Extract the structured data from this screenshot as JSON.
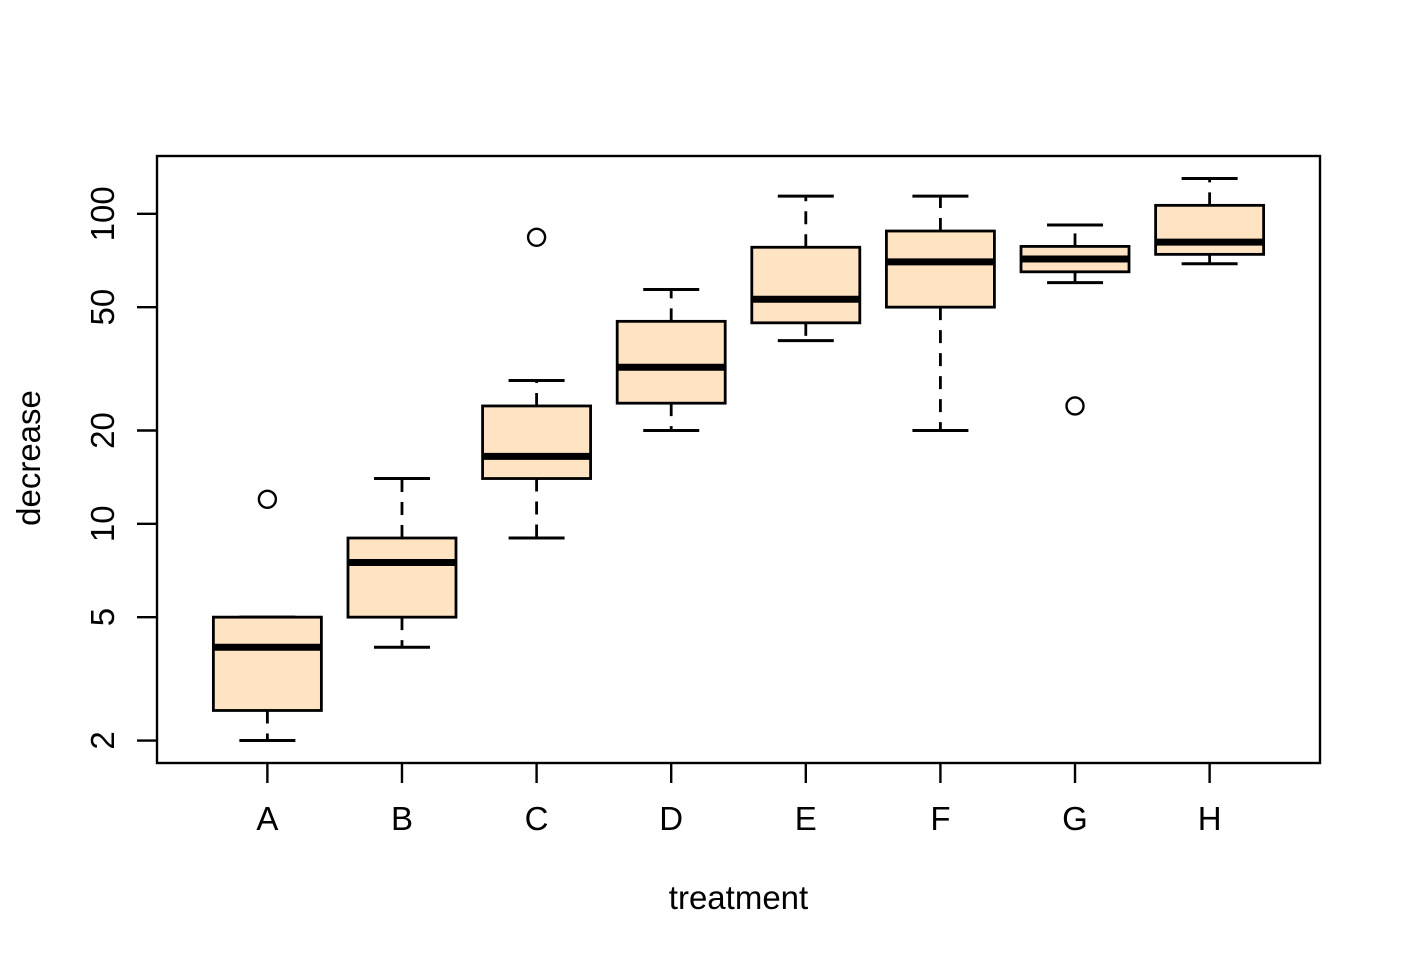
{
  "figure": {
    "background_color": "#ffffff",
    "box_fill_color": "#FFE4C4",
    "line_color": "#000000"
  },
  "chart_data": {
    "type": "boxplot",
    "title": "",
    "xlabel": "treatment",
    "ylabel": "decrease",
    "y_scale": "log10",
    "y_ticks": [
      2,
      5,
      10,
      20,
      50,
      100
    ],
    "ylim": [
      1.69,
      154
    ],
    "grid": false,
    "legend": null,
    "categories": [
      "A",
      "B",
      "C",
      "D",
      "E",
      "F",
      "G",
      "H"
    ],
    "boxes": [
      {
        "category": "A",
        "whisker_low": 2,
        "q1": 2.5,
        "median": 4,
        "q3": 5,
        "whisker_high": 5,
        "outliers": [
          12
        ]
      },
      {
        "category": "B",
        "whisker_low": 4,
        "q1": 5,
        "median": 7.5,
        "q3": 9,
        "whisker_high": 14,
        "outliers": []
      },
      {
        "category": "C",
        "whisker_low": 9,
        "q1": 14,
        "median": 16.5,
        "q3": 24,
        "whisker_high": 29,
        "outliers": [
          84
        ]
      },
      {
        "category": "D",
        "whisker_low": 20,
        "q1": 24.5,
        "median": 32,
        "q3": 45,
        "whisker_high": 57,
        "outliers": []
      },
      {
        "category": "E",
        "whisker_low": 39,
        "q1": 44.5,
        "median": 53,
        "q3": 78,
        "whisker_high": 114,
        "outliers": []
      },
      {
        "category": "F",
        "whisker_low": 20,
        "q1": 50,
        "median": 70,
        "q3": 88,
        "whisker_high": 114,
        "outliers": []
      },
      {
        "category": "G",
        "whisker_low": 60,
        "q1": 65,
        "median": 71.5,
        "q3": 78.5,
        "whisker_high": 92,
        "outliers": [
          24
        ]
      },
      {
        "category": "H",
        "whisker_low": 69,
        "q1": 74,
        "median": 81,
        "q3": 106.5,
        "whisker_high": 130,
        "outliers": []
      }
    ]
  }
}
